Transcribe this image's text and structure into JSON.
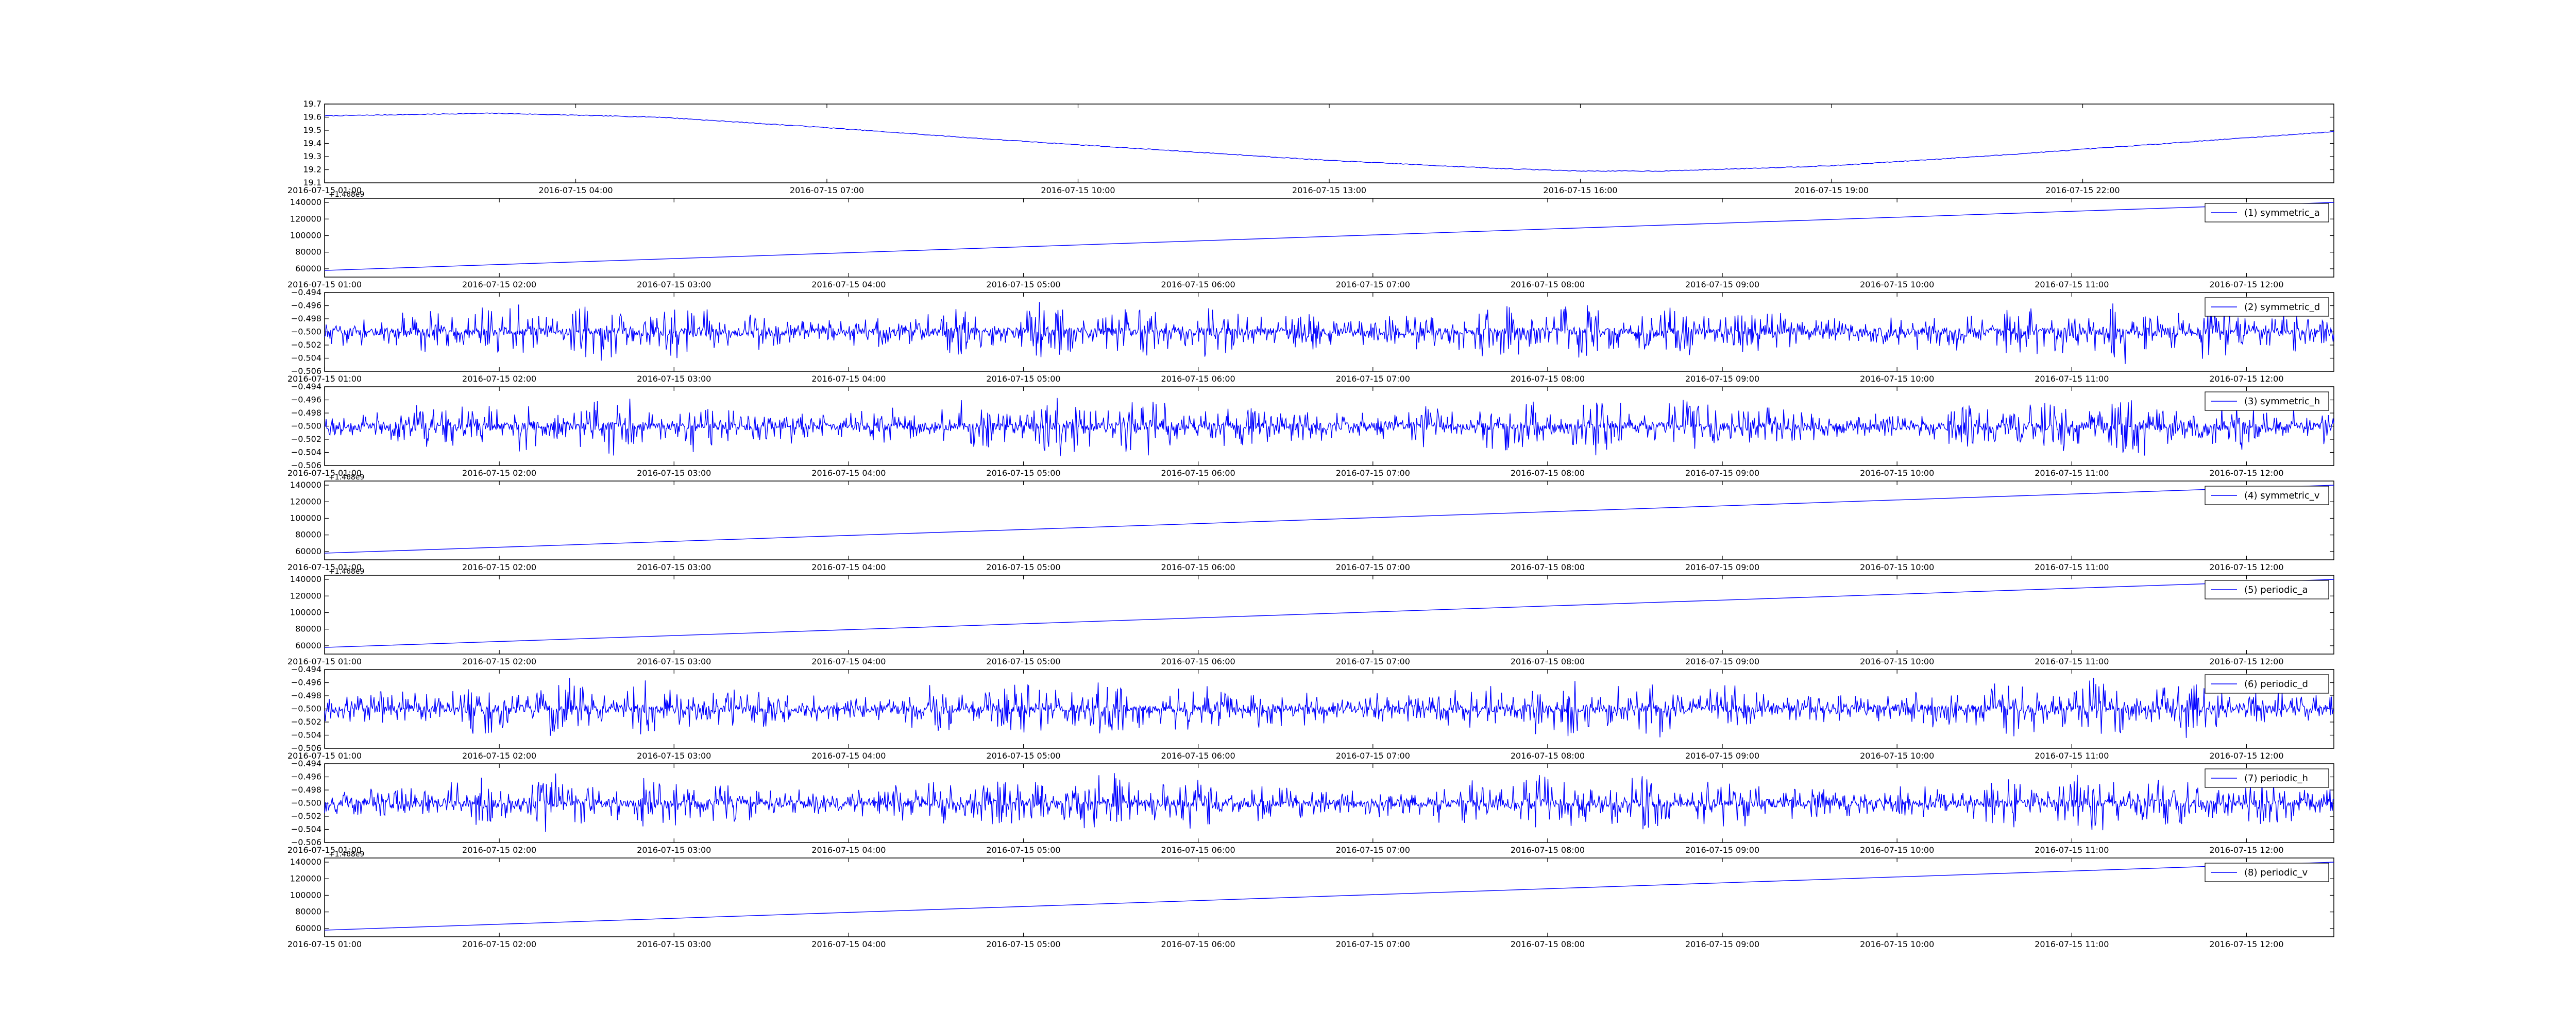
{
  "chart_data": [
    {
      "type": "line",
      "title": "",
      "xlabel": "",
      "ylabel": "",
      "color": "#0000ff",
      "grid": false,
      "legend": null,
      "xlim": [
        "2016-07-15 01:00",
        "2016-07-16 01:00"
      ],
      "ylim": [
        19.1,
        19.7
      ],
      "yticks": [
        "19.1",
        "19.2",
        "19.3",
        "19.4",
        "19.5",
        "19.6",
        "19.7"
      ],
      "xticks": [
        "2016-07-15 01:00",
        "2016-07-15 04:00",
        "2016-07-15 07:00",
        "2016-07-15 10:00",
        "2016-07-15 13:00",
        "2016-07-15 16:00",
        "2016-07-15 19:00",
        "2016-07-15 22:00"
      ],
      "series": [
        {
          "x": [
            "2016-07-15 01:00",
            "2016-07-15 03:00",
            "2016-07-15 05:00",
            "2016-07-15 07:00",
            "2016-07-15 09:00",
            "2016-07-15 11:00",
            "2016-07-15 13:00",
            "2016-07-15 15:00",
            "2016-07-15 16:00",
            "2016-07-15 17:00",
            "2016-07-15 19:00",
            "2016-07-15 21:00",
            "2016-07-15 23:00",
            "2016-07-16 01:00"
          ],
          "y": [
            19.61,
            19.63,
            19.6,
            19.52,
            19.43,
            19.35,
            19.27,
            19.21,
            19.19,
            19.19,
            19.23,
            19.31,
            19.4,
            19.49
          ]
        }
      ]
    },
    {
      "type": "line",
      "color": "#0000ff",
      "offset_text": "+1.468e9",
      "xlim": [
        "2016-07-15 01:00",
        "2016-07-15 12:30"
      ],
      "ylim": [
        50000,
        145000
      ],
      "yticks": [
        "60000",
        "80000",
        "100000",
        "120000",
        "140000"
      ],
      "xticks": [
        "2016-07-15 01:00",
        "2016-07-15 02:00",
        "2016-07-15 03:00",
        "2016-07-15 04:00",
        "2016-07-15 05:00",
        "2016-07-15 06:00",
        "2016-07-15 07:00",
        "2016-07-15 08:00",
        "2016-07-15 09:00",
        "2016-07-15 10:00",
        "2016-07-15 11:00",
        "2016-07-15 12:00"
      ],
      "legend": "top-right",
      "series": [
        {
          "name": "(1) symmetric_a",
          "x": [
            "2016-07-15 01:00",
            "2016-07-15 12:30"
          ],
          "y": [
            58000,
            140000
          ]
        }
      ]
    },
    {
      "type": "line",
      "color": "#0000ff",
      "xlim": [
        "2016-07-15 01:00",
        "2016-07-15 12:30"
      ],
      "ylim": [
        -0.506,
        -0.494
      ],
      "yticks": [
        "−0.506",
        "−0.504",
        "−0.502",
        "−0.500",
        "−0.498",
        "−0.496",
        "−0.494"
      ],
      "xticks": [
        "2016-07-15 01:00",
        "2016-07-15 02:00",
        "2016-07-15 03:00",
        "2016-07-15 04:00",
        "2016-07-15 05:00",
        "2016-07-15 06:00",
        "2016-07-15 07:00",
        "2016-07-15 08:00",
        "2016-07-15 09:00",
        "2016-07-15 10:00",
        "2016-07-15 11:00",
        "2016-07-15 12:00"
      ],
      "legend": "top-right",
      "series": [
        {
          "name": "(2) symmetric_d",
          "baseline": -0.5,
          "amplitude": 0.0045,
          "seed": 11
        }
      ]
    },
    {
      "type": "line",
      "color": "#0000ff",
      "xlim": [
        "2016-07-15 01:00",
        "2016-07-15 12:30"
      ],
      "ylim": [
        -0.506,
        -0.494
      ],
      "yticks": [
        "−0.506",
        "−0.504",
        "−0.502",
        "−0.500",
        "−0.498",
        "−0.496",
        "−0.494"
      ],
      "xticks": [
        "2016-07-15 01:00",
        "2016-07-15 02:00",
        "2016-07-15 03:00",
        "2016-07-15 04:00",
        "2016-07-15 05:00",
        "2016-07-15 06:00",
        "2016-07-15 07:00",
        "2016-07-15 08:00",
        "2016-07-15 09:00",
        "2016-07-15 10:00",
        "2016-07-15 11:00",
        "2016-07-15 12:00"
      ],
      "legend": "top-right",
      "series": [
        {
          "name": "(3) symmetric_h",
          "baseline": -0.5,
          "amplitude": 0.0045,
          "seed": 23
        }
      ]
    },
    {
      "type": "line",
      "color": "#0000ff",
      "offset_text": "+1.468e9",
      "xlim": [
        "2016-07-15 01:00",
        "2016-07-15 12:30"
      ],
      "ylim": [
        50000,
        145000
      ],
      "yticks": [
        "60000",
        "80000",
        "100000",
        "120000",
        "140000"
      ],
      "xticks": [
        "2016-07-15 01:00",
        "2016-07-15 02:00",
        "2016-07-15 03:00",
        "2016-07-15 04:00",
        "2016-07-15 05:00",
        "2016-07-15 06:00",
        "2016-07-15 07:00",
        "2016-07-15 08:00",
        "2016-07-15 09:00",
        "2016-07-15 10:00",
        "2016-07-15 11:00",
        "2016-07-15 12:00"
      ],
      "legend": "top-right",
      "series": [
        {
          "name": "(4) symmetric_v",
          "x": [
            "2016-07-15 01:00",
            "2016-07-15 12:30"
          ],
          "y": [
            58000,
            140000
          ]
        }
      ]
    },
    {
      "type": "line",
      "color": "#0000ff",
      "offset_text": "+1.468e9",
      "xlim": [
        "2016-07-15 01:00",
        "2016-07-15 12:30"
      ],
      "ylim": [
        50000,
        145000
      ],
      "yticks": [
        "60000",
        "80000",
        "100000",
        "120000",
        "140000"
      ],
      "xticks": [
        "2016-07-15 01:00",
        "2016-07-15 02:00",
        "2016-07-15 03:00",
        "2016-07-15 04:00",
        "2016-07-15 05:00",
        "2016-07-15 06:00",
        "2016-07-15 07:00",
        "2016-07-15 08:00",
        "2016-07-15 09:00",
        "2016-07-15 10:00",
        "2016-07-15 11:00",
        "2016-07-15 12:00"
      ],
      "legend": "top-right",
      "series": [
        {
          "name": "(5) periodic_a",
          "x": [
            "2016-07-15 01:00",
            "2016-07-15 12:30"
          ],
          "y": [
            58000,
            140000
          ]
        }
      ]
    },
    {
      "type": "line",
      "color": "#0000ff",
      "xlim": [
        "2016-07-15 01:00",
        "2016-07-15 12:30"
      ],
      "ylim": [
        -0.506,
        -0.494
      ],
      "yticks": [
        "−0.506",
        "−0.504",
        "−0.502",
        "−0.500",
        "−0.498",
        "−0.496",
        "−0.494"
      ],
      "xticks": [
        "2016-07-15 01:00",
        "2016-07-15 02:00",
        "2016-07-15 03:00",
        "2016-07-15 04:00",
        "2016-07-15 05:00",
        "2016-07-15 06:00",
        "2016-07-15 07:00",
        "2016-07-15 08:00",
        "2016-07-15 09:00",
        "2016-07-15 10:00",
        "2016-07-15 11:00",
        "2016-07-15 12:00"
      ],
      "legend": "top-right",
      "series": [
        {
          "name": "(6) periodic_d",
          "baseline": -0.5,
          "amplitude": 0.0045,
          "seed": 37
        }
      ]
    },
    {
      "type": "line",
      "color": "#0000ff",
      "xlim": [
        "2016-07-15 01:00",
        "2016-07-15 12:30"
      ],
      "ylim": [
        -0.506,
        -0.494
      ],
      "yticks": [
        "−0.506",
        "−0.504",
        "−0.502",
        "−0.500",
        "−0.498",
        "−0.496",
        "−0.494"
      ],
      "xticks": [
        "2016-07-15 01:00",
        "2016-07-15 02:00",
        "2016-07-15 03:00",
        "2016-07-15 04:00",
        "2016-07-15 05:00",
        "2016-07-15 06:00",
        "2016-07-15 07:00",
        "2016-07-15 08:00",
        "2016-07-15 09:00",
        "2016-07-15 10:00",
        "2016-07-15 11:00",
        "2016-07-15 12:00"
      ],
      "legend": "top-right",
      "series": [
        {
          "name": "(7) periodic_h",
          "baseline": -0.5,
          "amplitude": 0.0045,
          "seed": 53
        }
      ]
    },
    {
      "type": "line",
      "color": "#0000ff",
      "offset_text": "+1.468e9",
      "xlim": [
        "2016-07-15 01:00",
        "2016-07-15 12:30"
      ],
      "ylim": [
        50000,
        145000
      ],
      "yticks": [
        "60000",
        "80000",
        "100000",
        "120000",
        "140000"
      ],
      "xticks": [
        "2016-07-15 01:00",
        "2016-07-15 02:00",
        "2016-07-15 03:00",
        "2016-07-15 04:00",
        "2016-07-15 05:00",
        "2016-07-15 06:00",
        "2016-07-15 07:00",
        "2016-07-15 08:00",
        "2016-07-15 09:00",
        "2016-07-15 10:00",
        "2016-07-15 11:00",
        "2016-07-15 12:00"
      ],
      "legend": "top-right",
      "series": [
        {
          "name": "(8) periodic_v",
          "x": [
            "2016-07-15 01:00",
            "2016-07-15 12:30"
          ],
          "y": [
            58000,
            140000
          ]
        }
      ]
    }
  ]
}
